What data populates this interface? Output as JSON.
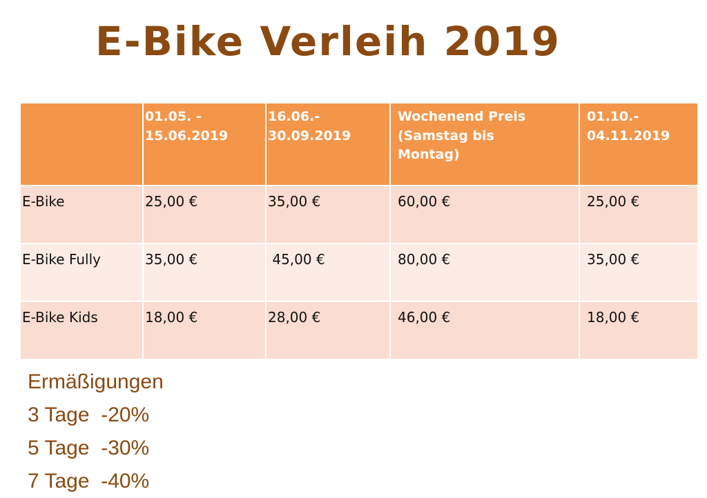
{
  "title": "E-Bike Verleih 2019",
  "table": {
    "headers": [
      "",
      "01.05. -\n15.06.2019",
      "16.06.-\n30.09.2019",
      "Wochenend Preis\n(Samstag bis\nMontag)",
      "01.10.-\n04.11.2019"
    ],
    "rows": [
      [
        "E-Bike",
        "25,00 €",
        "35,00 €",
        "60,00 €",
        "25,00 €"
      ],
      [
        "E-Bike Fully",
        "35,00 €",
        " 45,00 €",
        "80,00 €",
        "35,00 €"
      ],
      [
        "E-Bike Kids",
        "18,00 €",
        "28,00 €",
        "46,00 €",
        "18,00 €"
      ]
    ]
  },
  "discounts": {
    "heading": "Ermäßigungen",
    "items": [
      "3 Tage  -20%",
      "5 Tage  -30%",
      "7 Tage  -40%"
    ]
  },
  "colors": {
    "header_bg": "#f4964a",
    "row_odd": "#fbdcd0",
    "row_even": "#fdece6",
    "title_text": "#8a4a12"
  }
}
